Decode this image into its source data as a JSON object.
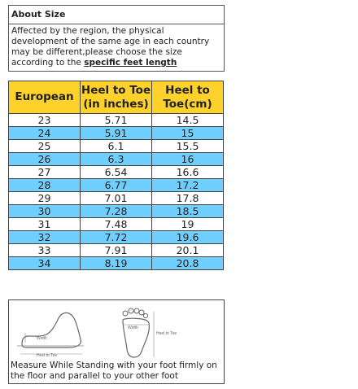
{
  "about": {
    "title": "About Size",
    "body": "Affected by the region, the physical development of the same age in each country may be different,please choose the size according to the",
    "emphasis": "specific feet length"
  },
  "size_table": {
    "headers": [
      "European",
      "Heel to Toe (in inches)",
      "Heel to Toe(cm)"
    ],
    "rows": [
      [
        "23",
        "5.71",
        "14.5"
      ],
      [
        "24",
        "5.91",
        "15"
      ],
      [
        "25",
        "6.1",
        "15.5"
      ],
      [
        "26",
        "6.3",
        "16"
      ],
      [
        "27",
        "6.54",
        "16.6"
      ],
      [
        "28",
        "6.77",
        "17.2"
      ],
      [
        "29",
        "7.01",
        "17.8"
      ],
      [
        "30",
        "7.28",
        "18.5"
      ],
      [
        "31",
        "7.48",
        "19"
      ],
      [
        "32",
        "7.72",
        "19.6"
      ],
      [
        "33",
        "7.91",
        "20.1"
      ],
      [
        "34",
        "8.19",
        "20.8"
      ]
    ],
    "header_color": "#ffd22b",
    "alt_row_color": "#6fd0ff"
  },
  "measure": {
    "side_labels": {
      "width": "Width",
      "length": "Heel to Toe"
    },
    "sole_labels": {
      "width": "Width",
      "length": "Heel to Toe"
    },
    "caption": "Measure While Standing with your foot firmly on the floor and parallel to your other foot"
  }
}
